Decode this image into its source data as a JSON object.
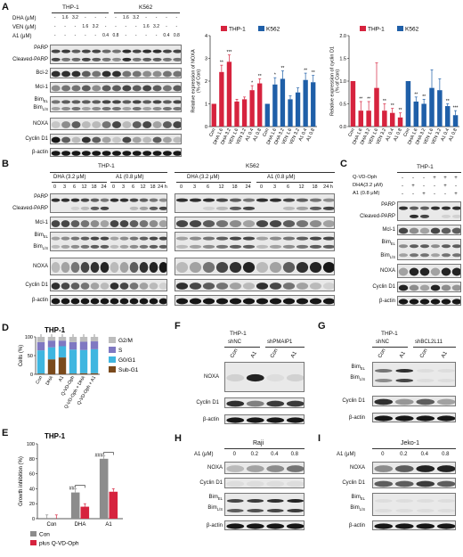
{
  "panels": {
    "A": {
      "letter": "A",
      "cells": [
        "THP-1",
        "K562"
      ],
      "row_labels": [
        "DHA (μM)",
        "VEN (μM)",
        "A1 (μM)"
      ],
      "dha_vals": [
        "-",
        "1.6",
        "3.2",
        "-",
        "-",
        "-",
        "-",
        "1.6",
        "3.2",
        "-",
        "-",
        "-",
        "-"
      ],
      "ven_vals": [
        "-",
        "-",
        "-",
        "1.6",
        "3.2",
        "-",
        "-",
        "-",
        "-",
        "1.6",
        "3.2",
        "-",
        "-"
      ],
      "a1_vals": [
        "-",
        "-",
        "-",
        "-",
        "-",
        "0.4",
        "0.8",
        "-",
        "-",
        "-",
        "-",
        "0.4",
        "0.8"
      ],
      "bands": [
        "PARP",
        "Cleaved-PARP",
        "Bcl-2",
        "Mcl-1",
        "BimEL",
        "BimL/S",
        "NOXA",
        "Cyclin D1",
        "β-actin"
      ]
    },
    "B": {
      "letter": "B",
      "cells": [
        "THP-1",
        "K562"
      ],
      "treatments": [
        "DHA (3.2 μM)",
        "A1 (0.8 μM)",
        "DHA (3.2 μM)",
        "A1 (0.8 μM)"
      ],
      "times": [
        "0",
        "3",
        "6",
        "12",
        "18",
        "24",
        "0",
        "3",
        "6",
        "12",
        "18",
        "24 h"
      ],
      "bands": [
        "PARP",
        "Cleaved-PARP",
        "Mcl-1",
        "BimEL",
        "BimL/S",
        "NOXA",
        "Cyclin D1",
        "β-actin"
      ]
    },
    "C": {
      "letter": "C",
      "cell": "THP-1",
      "row_labels": [
        "Q-VD-Oph",
        "DHA(3.2 μM)",
        "A1 (0.8 μM)"
      ],
      "qvd": [
        "-",
        "-",
        "-",
        "+",
        "+",
        "+"
      ],
      "dha": [
        "-",
        "+",
        "-",
        "-",
        "+",
        "-"
      ],
      "a1": [
        "-",
        "-",
        "+",
        "-",
        "-",
        "+"
      ],
      "bands": [
        "PARP",
        "Cleaved-PARP",
        "Mcl-1",
        "BimEL",
        "BimL/S",
        "NOXA",
        "Cyclin D1",
        "β-actin"
      ]
    },
    "D": {
      "letter": "D",
      "title": "THP-1",
      "ylabel": "Cells (%)",
      "ticks": [
        "100",
        "50",
        "0"
      ],
      "categories": [
        "Con",
        "DHA",
        "A1",
        "Q-VD-Oph",
        "Q-VD-Oph + DHA",
        "Q-VD-Oph + A1"
      ],
      "legend": [
        "G2/M",
        "S",
        "G0/G1",
        "Sub-G1"
      ]
    },
    "E": {
      "letter": "E",
      "title": "THP-1",
      "ylabel": "Growth inhibition (%)",
      "ticks": [
        "100",
        "80",
        "60",
        "40",
        "20",
        "0"
      ],
      "categories": [
        "Con",
        "DHA",
        "A1"
      ],
      "annotations": [
        "##",
        "###"
      ],
      "legend": [
        "Con",
        "plus Q-VD-Oph"
      ]
    },
    "F": {
      "letter": "F",
      "cell": "THP-1",
      "groups": [
        "shNC",
        "shPMAIP1"
      ],
      "lanes": [
        "Con",
        "A1",
        "Con",
        "A1"
      ],
      "bands": [
        "NOXA",
        "Cyclin D1",
        "β-actin"
      ]
    },
    "G": {
      "letter": "G",
      "cell": "THP-1",
      "groups": [
        "shNC",
        "shBCL2L11"
      ],
      "lanes": [
        "Con",
        "A1",
        "Con",
        "A1"
      ],
      "bands": [
        "BimEL",
        "BimL/S",
        "Cyclin D1",
        "β-actin"
      ]
    },
    "H": {
      "letter": "H",
      "title": "Raji",
      "row_label": "A1 (μM)",
      "doses": [
        "0",
        "0.2",
        "0.4",
        "0.8"
      ],
      "bands": [
        "NOXA",
        "Cyclin D1",
        "BimEL",
        "BimL/S",
        "β-actin"
      ]
    },
    "I": {
      "letter": "I",
      "title": "Jeko-1",
      "row_label": "A1 (μM)",
      "doses": [
        "0",
        "0.2",
        "0.4",
        "0.8"
      ],
      "bands": [
        "NOXA",
        "Cyclin D1",
        "BimEL",
        "BimL/S",
        "β-actin"
      ]
    }
  },
  "chart_data": [
    {
      "type": "bar",
      "title": "",
      "ylabel": "Relative expression of NOXA (% of Con)",
      "ylim": [
        0,
        4
      ],
      "yticks": [
        0,
        1,
        2,
        3,
        4
      ],
      "legend_position": "top-right",
      "categories": [
        "Con",
        "DHA 1.6",
        "DHA 3.2",
        "VEN 1.6",
        "VEN 3.2",
        "A1 0.4",
        "A1 0.8"
      ],
      "series": [
        {
          "name": "THP-1",
          "color": "#d6233e",
          "values": [
            1.0,
            2.4,
            2.85,
            1.1,
            1.2,
            1.6,
            1.9
          ],
          "errors": [
            0,
            0.3,
            0.3,
            0.1,
            0.1,
            0.2,
            0.2
          ],
          "sig": [
            "",
            "**",
            "***",
            "",
            "",
            "*",
            "**"
          ]
        },
        {
          "name": "K562",
          "color": "#1f5fa8",
          "values": [
            1.0,
            1.85,
            2.1,
            1.2,
            1.5,
            2.05,
            1.95
          ],
          "errors": [
            0,
            0.3,
            0.35,
            0.15,
            0.2,
            0.3,
            0.3
          ],
          "sig": [
            "",
            "*",
            "**",
            "",
            "",
            "**",
            "**"
          ]
        }
      ]
    },
    {
      "type": "bar",
      "title": "",
      "ylabel": "Relative expression of cyclin D1 (% of Con)",
      "ylim": [
        0,
        2.0
      ],
      "yticks": [
        0,
        0.5,
        1.0,
        1.5,
        2.0
      ],
      "legend_position": "top-right",
      "categories": [
        "Con",
        "DHA 1.6",
        "DHA 3.2",
        "VEN 1.6",
        "VEN 3.2",
        "A1 0.4",
        "A1 0.8"
      ],
      "series": [
        {
          "name": "THP-1",
          "color": "#d6233e",
          "values": [
            1.0,
            0.35,
            0.35,
            0.85,
            0.35,
            0.3,
            0.2
          ],
          "errors": [
            0,
            0.2,
            0.2,
            0.55,
            0.15,
            0.1,
            0.1
          ],
          "sig": [
            "",
            "**",
            "**",
            "",
            "**",
            "**",
            "**"
          ]
        },
        {
          "name": "K562",
          "color": "#1f5fa8",
          "values": [
            1.0,
            0.55,
            0.5,
            0.85,
            0.8,
            0.45,
            0.25
          ],
          "errors": [
            0,
            0.1,
            0.1,
            0.4,
            0.25,
            0.05,
            0.1
          ],
          "sig": [
            "",
            "**",
            "**",
            "",
            "",
            "**",
            "***"
          ]
        }
      ]
    },
    {
      "type": "bar",
      "stacked": true,
      "title": "THP-1",
      "ylabel": "Cells (%)",
      "ylim": [
        0,
        100
      ],
      "categories": [
        "Con",
        "DHA",
        "A1",
        "Q-VD-Oph",
        "Q-VD-Oph + DHA",
        "Q-VD-Oph + A1"
      ],
      "series": [
        {
          "name": "Sub-G1",
          "color": "#7a4a1c",
          "values": [
            2,
            40,
            45,
            2,
            3,
            3
          ]
        },
        {
          "name": "G0/G1",
          "color": "#3fb6e0",
          "values": [
            62,
            32,
            30,
            64,
            62,
            64
          ]
        },
        {
          "name": "S",
          "color": "#7f78c2",
          "values": [
            22,
            18,
            15,
            20,
            22,
            21
          ]
        },
        {
          "name": "G2/M",
          "color": "#bdbdbd",
          "values": [
            14,
            10,
            10,
            14,
            13,
            12
          ]
        }
      ]
    },
    {
      "type": "bar",
      "title": "THP-1",
      "ylabel": "Growth inhibition (%)",
      "ylim": [
        0,
        100
      ],
      "categories": [
        "Con",
        "DHA",
        "A1"
      ],
      "series": [
        {
          "name": "Con",
          "color": "#8c8c8c",
          "values": [
            0,
            35,
            80
          ],
          "errors": [
            5,
            5,
            4
          ]
        },
        {
          "name": "plus Q-VD-Oph",
          "color": "#d6233e",
          "values": [
            0,
            16,
            36
          ],
          "errors": [
            5,
            4,
            4
          ]
        }
      ]
    }
  ]
}
